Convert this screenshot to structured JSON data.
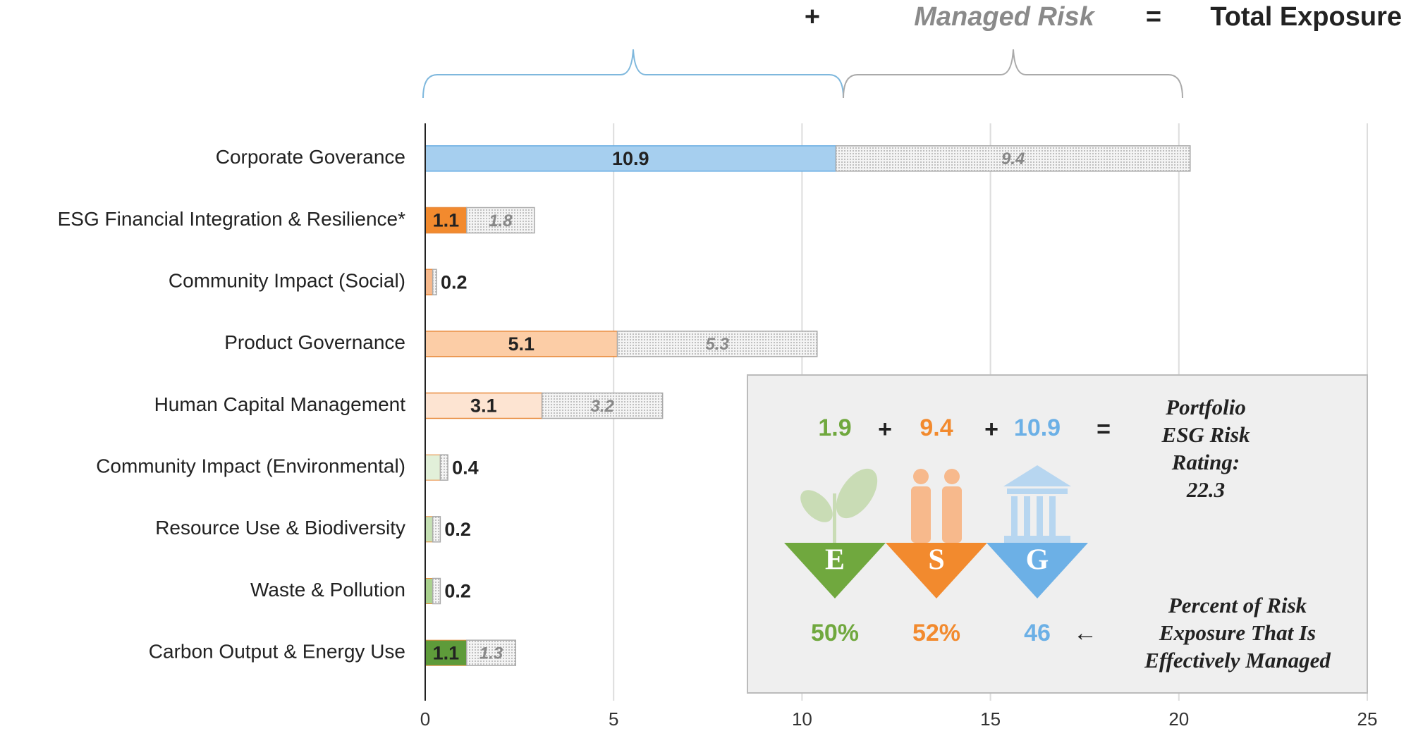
{
  "chart_data": {
    "type": "bar",
    "orientation": "horizontal",
    "stacked": true,
    "categories": [
      "Corporate Goverance",
      "ESG Financial Integration & Resilience*",
      "Community Impact (Social)",
      "Product Governance",
      "Human Capital Management",
      "Community Impact (Environmental)",
      "Resource Use & Biodiversity",
      "Waste & Pollution",
      "Carbon Output & Energy Use"
    ],
    "series": [
      {
        "colors": [
          "#a6cfef",
          "#f28a2e",
          "#f7b98c",
          "#fccda6",
          "#fde4d2",
          "#e2f0d9",
          "#c5e0b4",
          "#a9d18e",
          "#5e9b3a"
        ],
        "values": [
          10.9,
          1.1,
          0.2,
          5.1,
          3.1,
          0.4,
          0.2,
          0.2,
          1.1
        ]
      },
      {
        "name": "Managed Risk",
        "color": "#f2f2f2",
        "values": [
          9.4,
          1.8,
          0.1,
          5.3,
          3.2,
          0.2,
          0.2,
          0.2,
          1.3
        ],
        "value_labels": [
          "9.4",
          "1.8",
          null,
          "5.3",
          "3.2",
          null,
          null,
          null,
          "1.3"
        ]
      }
    ],
    "xlim": [
      0,
      25
    ],
    "xticks": [
      0,
      5,
      10,
      15,
      20,
      25
    ],
    "grid": true
  },
  "header": {
    "plus": "+",
    "equals": "=",
    "total": "Total Exposure"
  },
  "panel": {
    "scores": [
      {
        "value": 1.9,
        "letter": "E",
        "percent": "50%",
        "color": "#70a83e"
      },
      {
        "value": 9.4,
        "letter": "S",
        "percent": "52%",
        "color": "#f28a2e"
      },
      {
        "value": 10.9,
        "letter": "G",
        "percent": "46",
        "color": "#6cb0e6"
      }
    ],
    "operators": [
      "+",
      "+",
      "="
    ],
    "rating_lines": [
      "Portfolio",
      "ESG Risk",
      "Rating:",
      "22.3"
    ],
    "arrow": "←",
    "note_lines": [
      "Percent of Risk",
      "Exposure That Is",
      "Effectively Managed"
    ]
  }
}
